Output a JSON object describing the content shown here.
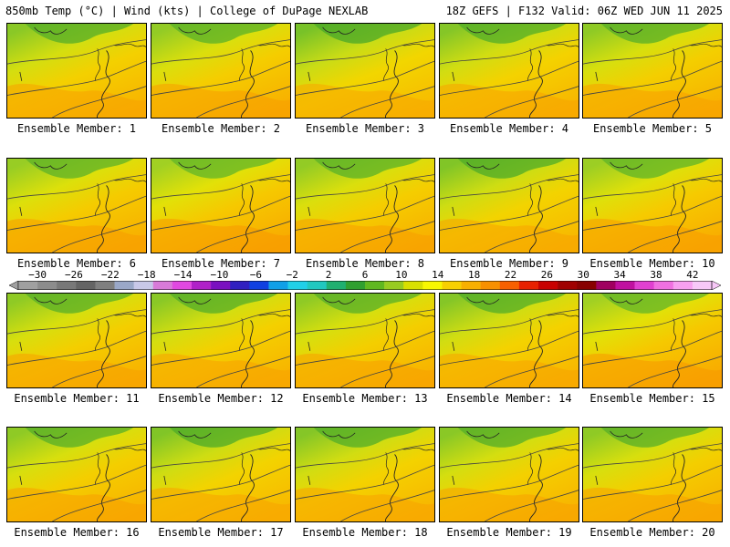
{
  "header": {
    "title_left": "850mb Temp (°C) | Wind (kts) | College of DuPage NEXLAB",
    "title_right": "18Z GEFS | F132 Valid: 06Z WED JUN 11 2025"
  },
  "colorbar": {
    "labels": [
      "−30",
      "−26",
      "−22",
      "−18",
      "−14",
      "−10",
      "−6",
      "−2",
      "2",
      "6",
      "10",
      "14",
      "18",
      "22",
      "26",
      "30",
      "34",
      "38",
      "42"
    ],
    "colors": [
      "#a0a0a0",
      "#8c8c8c",
      "#787878",
      "#646464",
      "#7f7f7f",
      "#9aa8c8",
      "#c8c8e8",
      "#d87ad8",
      "#e048e0",
      "#b020c8",
      "#7a10c0",
      "#3020c0",
      "#1040e0",
      "#10a0e8",
      "#20d0e8",
      "#20c8c0",
      "#20b070",
      "#30a030",
      "#60b820",
      "#98cc20",
      "#d8e000",
      "#f8f800",
      "#f8d000",
      "#f8b000",
      "#f89000",
      "#f86000",
      "#e82000",
      "#c80000",
      "#a00000",
      "#880000",
      "#a00060",
      "#c010a0",
      "#e040d0",
      "#f070e0",
      "#f8a0f0",
      "#f8c8f8"
    ]
  },
  "members": [
    {
      "label": "Ensemble Member: 1",
      "temp_tint": 0.5
    },
    {
      "label": "Ensemble Member: 2",
      "temp_tint": 0.6
    },
    {
      "label": "Ensemble Member: 3",
      "temp_tint": 0.3
    },
    {
      "label": "Ensemble Member: 4",
      "temp_tint": 0.45
    },
    {
      "label": "Ensemble Member: 5",
      "temp_tint": 0.55
    },
    {
      "label": "Ensemble Member: 6",
      "temp_tint": 0.65
    },
    {
      "label": "Ensemble Member: 7",
      "temp_tint": 0.75
    },
    {
      "label": "Ensemble Member: 8",
      "temp_tint": 0.6
    },
    {
      "label": "Ensemble Member: 9",
      "temp_tint": 0.4
    },
    {
      "label": "Ensemble Member: 10",
      "temp_tint": 0.7
    },
    {
      "label": "Ensemble Member: 11",
      "temp_tint": 0.55
    },
    {
      "label": "Ensemble Member: 12",
      "temp_tint": 0.5
    },
    {
      "label": "Ensemble Member: 13",
      "temp_tint": 0.55
    },
    {
      "label": "Ensemble Member: 14",
      "temp_tint": 0.45
    },
    {
      "label": "Ensemble Member: 15",
      "temp_tint": 0.75
    },
    {
      "label": "Ensemble Member: 16",
      "temp_tint": 0.55
    },
    {
      "label": "Ensemble Member: 17",
      "temp_tint": 0.4
    },
    {
      "label": "Ensemble Member: 18",
      "temp_tint": 0.45
    },
    {
      "label": "Ensemble Member: 19",
      "temp_tint": 0.5
    },
    {
      "label": "Ensemble Member: 20",
      "temp_tint": 0.55
    }
  ]
}
